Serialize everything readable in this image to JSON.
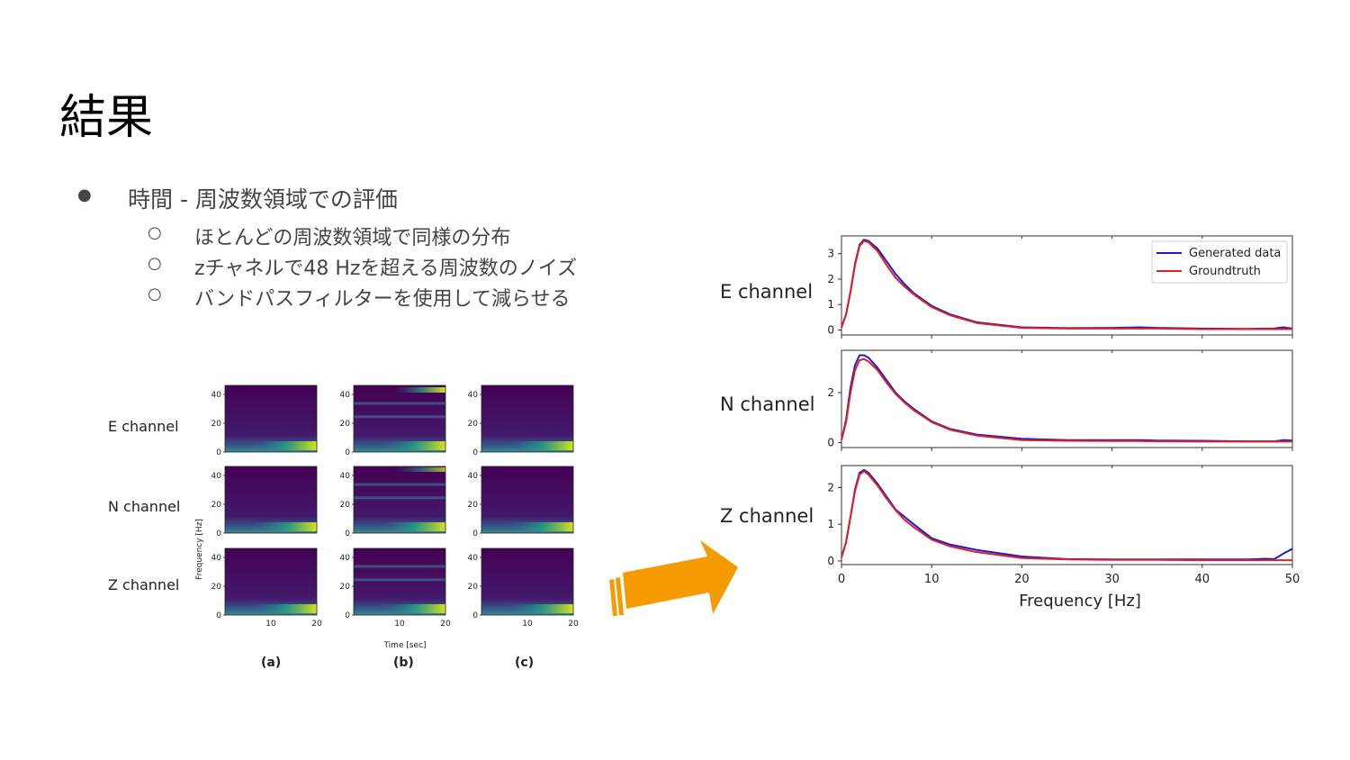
{
  "slide": {
    "title": "結果",
    "bullet": "時間 - 周波数領域での評価",
    "sub_bullets": [
      "ほとんどの周波数領域で同様の分布",
      "zチャネルで48 Hzを超える周波数のノイズ",
      "バンドパスフィルターを使用して減らせる"
    ]
  },
  "spectrogram": {
    "row_labels": [
      "E channel",
      "N channel",
      "Z channel"
    ],
    "col_labels": [
      "(a)",
      "(b)",
      "(c)"
    ],
    "ylabel": "Frequency [Hz]",
    "xlabel": "Time [sec]",
    "yticks": [
      "0",
      "20",
      "40"
    ],
    "xticks": [
      "10",
      "20"
    ]
  },
  "chart_data": {
    "type": "line",
    "xlabel": "Frequency [Hz]",
    "xlim": [
      0,
      50
    ],
    "xticks": [
      "0",
      "10",
      "20",
      "30",
      "40",
      "50"
    ],
    "legend": [
      "Generated data",
      "Groundtruth"
    ],
    "legend_position": "top-right",
    "colors": {
      "generated": "#1a1ad6",
      "groundtruth": "#e02020"
    },
    "x": [
      0,
      0.5,
      1,
      1.5,
      2,
      2.5,
      3,
      4,
      5,
      6,
      7,
      8,
      10,
      12,
      15,
      20,
      25,
      30,
      33,
      35,
      40,
      45,
      47,
      48,
      49,
      50
    ],
    "panels": [
      {
        "label": "E channel",
        "yticks": [
          "0",
          "1",
          "2",
          "3"
        ],
        "ylim": [
          -0.2,
          3.7
        ],
        "series": [
          {
            "name": "Generated data",
            "values": [
              0.1,
              0.6,
              1.5,
              2.6,
              3.35,
              3.55,
              3.5,
              3.2,
              2.7,
              2.2,
              1.8,
              1.45,
              0.95,
              0.62,
              0.3,
              0.1,
              0.07,
              0.08,
              0.1,
              0.08,
              0.05,
              0.04,
              0.05,
              0.06,
              0.1,
              0.05
            ]
          },
          {
            "name": "Groundtruth",
            "values": [
              0.1,
              0.6,
              1.5,
              2.55,
              3.3,
              3.5,
              3.45,
              3.1,
              2.55,
              2.05,
              1.7,
              1.4,
              0.9,
              0.58,
              0.27,
              0.08,
              0.05,
              0.05,
              0.05,
              0.05,
              0.03,
              0.03,
              0.03,
              0.03,
              0.03,
              0.03
            ]
          }
        ]
      },
      {
        "label": "N channel",
        "yticks": [
          "0",
          "2"
        ],
        "ylim": [
          -0.2,
          3.7
        ],
        "series": [
          {
            "name": "Generated data",
            "values": [
              0.1,
              0.9,
              2.2,
              3.1,
              3.5,
              3.5,
              3.4,
              3.0,
              2.5,
              2.0,
              1.65,
              1.35,
              0.85,
              0.55,
              0.32,
              0.15,
              0.1,
              0.1,
              0.1,
              0.08,
              0.07,
              0.05,
              0.05,
              0.05,
              0.1,
              0.08
            ]
          },
          {
            "name": "Groundtruth",
            "values": [
              0.1,
              0.8,
              2.0,
              2.9,
              3.3,
              3.35,
              3.25,
              2.9,
              2.4,
              1.95,
              1.6,
              1.3,
              0.82,
              0.52,
              0.28,
              0.1,
              0.07,
              0.06,
              0.06,
              0.05,
              0.04,
              0.04,
              0.04,
              0.04,
              0.04,
              0.04
            ]
          }
        ]
      },
      {
        "label": "Z channel",
        "yticks": [
          "0",
          "1",
          "2"
        ],
        "ylim": [
          -0.1,
          2.6
        ],
        "series": [
          {
            "name": "Generated data",
            "values": [
              0.1,
              0.5,
              1.2,
              1.95,
              2.4,
              2.48,
              2.4,
              2.1,
              1.75,
              1.4,
              1.2,
              1.0,
              0.62,
              0.45,
              0.3,
              0.12,
              0.05,
              0.04,
              0.04,
              0.04,
              0.04,
              0.04,
              0.06,
              0.05,
              0.2,
              0.33
            ]
          },
          {
            "name": "Groundtruth",
            "values": [
              0.1,
              0.5,
              1.2,
              1.9,
              2.35,
              2.45,
              2.35,
              2.05,
              1.7,
              1.38,
              1.12,
              0.92,
              0.58,
              0.4,
              0.24,
              0.08,
              0.04,
              0.03,
              0.03,
              0.03,
              0.02,
              0.02,
              0.02,
              0.02,
              0.02,
              0.02
            ]
          }
        ]
      }
    ]
  }
}
